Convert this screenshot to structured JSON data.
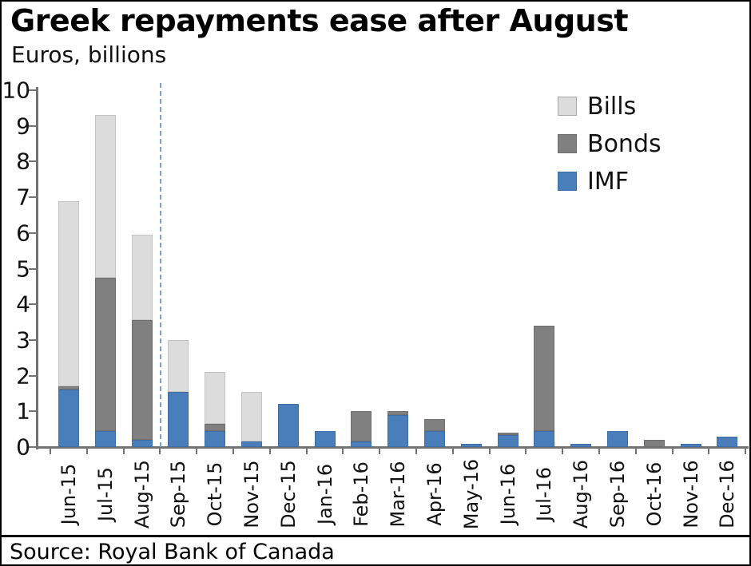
{
  "header": {
    "title": "Greek repayments ease after August",
    "subtitle": "Euros, billions"
  },
  "chart_data": {
    "type": "bar",
    "stacked": true,
    "title": "Greek repayments ease after August",
    "subtitle": "Euros, billions",
    "ylabel": "Euros, billions",
    "xlabel": "",
    "ylim": [
      0,
      10
    ],
    "ytick_step": 1,
    "yticks": [
      0,
      1,
      2,
      3,
      4,
      5,
      6,
      7,
      8,
      9,
      10
    ],
    "grid": false,
    "categories": [
      "Jun-15",
      "Jul-15",
      "Aug-15",
      "Sep-15",
      "Oct-15",
      "Nov-15",
      "Dec-15",
      "Jan-16",
      "Feb-16",
      "Mar-16",
      "Apr-16",
      "May-16",
      "Jun-16",
      "Jul-16",
      "Aug-16",
      "Sep-16",
      "Oct-16",
      "Nov-16",
      "Dec-16"
    ],
    "series": [
      {
        "name": "IMF",
        "color": "#4a7ebb",
        "border_color": "#3e6da6",
        "values": [
          1.6,
          0.45,
          0.2,
          1.55,
          0.45,
          0.15,
          1.2,
          0.45,
          0.15,
          0.9,
          0.45,
          0.1,
          0.33,
          0.45,
          0.1,
          0.45,
          0,
          0.1,
          0.3
        ]
      },
      {
        "name": "Bonds",
        "color": "#808080",
        "border_color": "#6e6e6e",
        "values": [
          0.1,
          4.3,
          3.35,
          0,
          0.2,
          0,
          0,
          0,
          0.85,
          0.1,
          0.33,
          0,
          0.07,
          2.95,
          0,
          0,
          0.2,
          0,
          0
        ]
      },
      {
        "name": "Bills",
        "color": "#dcdcdc",
        "border_color": "#c4c4c4",
        "values": [
          5.2,
          4.55,
          2.4,
          1.45,
          1.45,
          1.4,
          0,
          0,
          0,
          0,
          0,
          0,
          0,
          0,
          0,
          0,
          0,
          0,
          0
        ]
      }
    ],
    "divider": {
      "after_category": "Aug-15",
      "boundary_index": 3,
      "style": "dashed",
      "color": "#7ba2cc"
    },
    "legend_position": "upper-right"
  },
  "legend": {
    "items": [
      {
        "label": "Bills",
        "color": "#dcdcdc",
        "border_color": "#a8a8a8"
      },
      {
        "label": "Bonds",
        "color": "#808080",
        "border_color": "#6e6e6e"
      },
      {
        "label": "IMF",
        "color": "#4a7ebb",
        "border_color": "#3e6da6"
      }
    ]
  },
  "source": {
    "text": "Source: Royal Bank of Canada"
  }
}
